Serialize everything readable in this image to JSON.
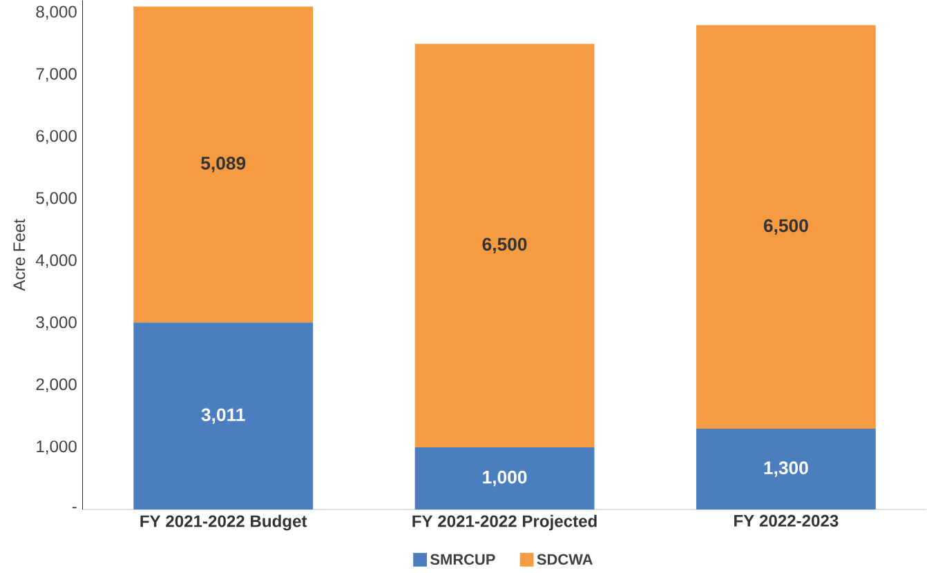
{
  "chart_data": {
    "type": "bar",
    "stacked": true,
    "ylabel": "Acre Feet",
    "categories": [
      "FY 2021-2022 Budget",
      "FY 2021-2022 Projected",
      "FY 2022-2023"
    ],
    "series": [
      {
        "name": "SMRCUP",
        "color": "#4a7ebf",
        "values": [
          3011,
          1000,
          1300
        ],
        "value_labels": [
          "3,011",
          "1,000",
          "1,300"
        ]
      },
      {
        "name": "SDCWA",
        "color": "#f79b43",
        "values": [
          5089,
          6500,
          6500
        ],
        "value_labels": [
          "5,089",
          "6,500",
          "6,500"
        ]
      }
    ],
    "ylim": [
      0,
      8200
    ],
    "yticks": [
      {
        "value": 0,
        "label": "-"
      },
      {
        "value": 1000,
        "label": "1,000"
      },
      {
        "value": 2000,
        "label": "2,000"
      },
      {
        "value": 3000,
        "label": "3,000"
      },
      {
        "value": 4000,
        "label": "4,000"
      },
      {
        "value": 5000,
        "label": "5,000"
      },
      {
        "value": 6000,
        "label": "6,000"
      },
      {
        "value": 7000,
        "label": "7,000"
      },
      {
        "value": 8000,
        "label": "8,000"
      }
    ],
    "legend": "bottom",
    "grid": false
  }
}
